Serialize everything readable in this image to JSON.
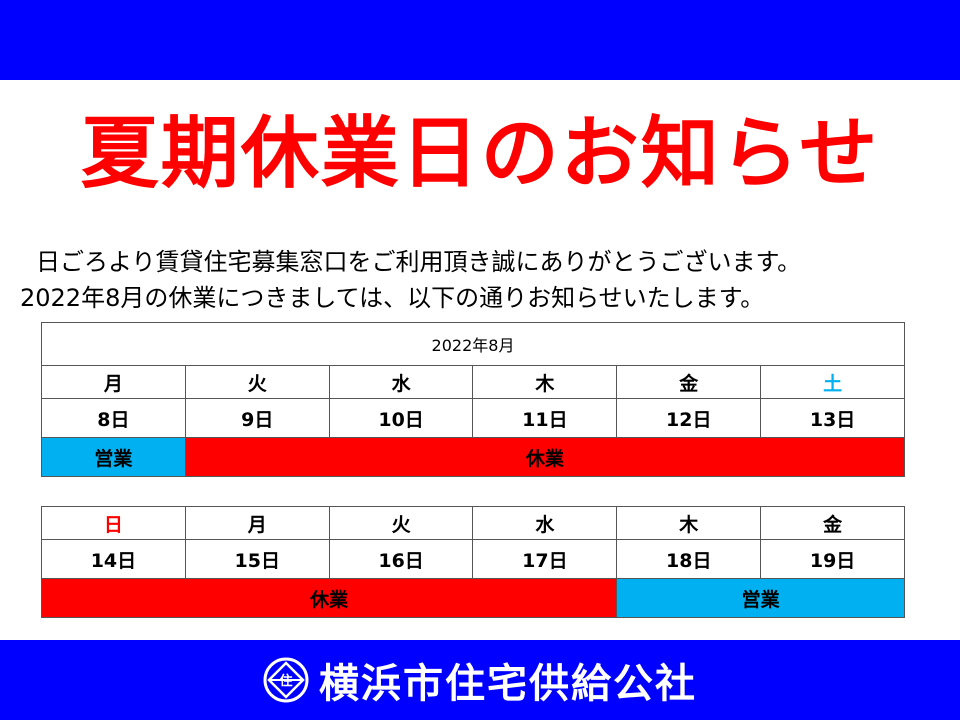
{
  "header": {
    "color": "#0000ff"
  },
  "title": "夏期休業日のお知らせ",
  "intro": {
    "line1": "日ごろより賃貸住宅募集窓口をご利用頂き誠にありがとうございます。",
    "line2": "2022年8月の休業につきましては、以下の通りお知らせいたします。"
  },
  "calendar": {
    "month_label": "2022年8月",
    "week1": {
      "days": [
        "月",
        "火",
        "水",
        "木",
        "金",
        "土"
      ],
      "dates": [
        "8日",
        "9日",
        "10日",
        "11日",
        "12日",
        "13日"
      ],
      "status_open": "営業",
      "status_closed": "休業"
    },
    "week2": {
      "days": [
        "日",
        "月",
        "火",
        "水",
        "木",
        "金"
      ],
      "dates": [
        "14日",
        "15日",
        "16日",
        "17日",
        "18日",
        "19日"
      ],
      "status_closed": "休業",
      "status_open": "営業"
    },
    "colors": {
      "open": "#00b0f0",
      "closed": "#ff0000",
      "saturday": "#00b0f0",
      "sunday": "#ff0000"
    }
  },
  "footer": {
    "logo_icon": "yokohama-housing-emblem-icon",
    "logo_mark": "住",
    "organization": "横浜市住宅供給公社"
  }
}
